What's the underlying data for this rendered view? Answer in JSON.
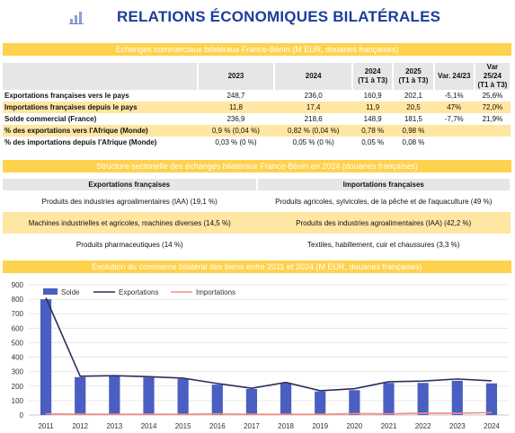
{
  "header": {
    "title": "RELATIONS ÉCONOMIQUES BILATÉRALES"
  },
  "section1": {
    "title": "Echanges commerciaux bilatéraux France-Bénin (M EUR, douanes françaises)",
    "columns": [
      "",
      "2023",
      "2024",
      "2024\n(T1 à T3)",
      "2025\n(T1 à T3)",
      "Var. 24/23",
      "Var 25/24\n(T1 à T3)"
    ],
    "rows": [
      {
        "label": "Exportations françaises vers le pays",
        "values": [
          "248,7",
          "236,0",
          "160,9",
          "202,1",
          "-5,1%",
          "25,6%"
        ]
      },
      {
        "label": "Importations françaises depuis le pays",
        "values": [
          "11,8",
          "17,4",
          "11,9",
          "20,5",
          "47%",
          "72,0%"
        ]
      },
      {
        "label": "Solde commercial (France)",
        "values": [
          "236,9",
          "218,6",
          "148,9",
          "181,5",
          "-7,7%",
          "21,9%"
        ]
      },
      {
        "label": "% des exportations vers l'Afrique (Monde)",
        "values": [
          "0,9 % (0,04 %)",
          "0,82 % (0,04 %)",
          "0,78 %",
          "0,98 %",
          "",
          ""
        ]
      },
      {
        "label": "% des importations depuis l'Afrique (Monde)",
        "values": [
          "0,03 % (0 %)",
          "0,05 % (0 %)",
          "0,05 %",
          "0,08 %",
          "",
          ""
        ]
      }
    ]
  },
  "section2": {
    "title": "Structure sectorielle des échanges bilatéraux France-Bénin en 2024 (douanes françaises)",
    "col_left": "Exportations françaises",
    "col_right": "Importations françaises",
    "rows": [
      {
        "left": "Produits des industries agroalimentaires (IAA) (19,1 %)",
        "right": "Produits agricoles, sylvicoles, de la pêche et de l'aquaculture (49 %)"
      },
      {
        "left": "Machines industrielles et agricoles, machines diverses (14,5 %)",
        "right": "Produits des industries agroalimentaires (IAA) (42,2 %)"
      },
      {
        "left": "Produits pharmaceutiques (14 %)",
        "right": "Textiles, habillement, cuir et chaussures (3,3 %)"
      }
    ]
  },
  "section3": {
    "title": "Evolution du commerce bilatéral des biens entre 2011 et 2024 (M EUR, douanes françaises)"
  },
  "colors": {
    "accent_band": "#ffd24d",
    "title_blue": "#1f3d99",
    "bar": "#4a5fc1",
    "exports_line": "#2d2f5a",
    "imports_line": "#f28b82",
    "row_alt": "#ffe6a3"
  },
  "chart_data": {
    "type": "bar",
    "categories": [
      "2011",
      "2012",
      "2013",
      "2014",
      "2015",
      "2016",
      "2017",
      "2018",
      "2019",
      "2020",
      "2021",
      "2022",
      "2023",
      "2024"
    ],
    "series": [
      {
        "name": "Solde",
        "type": "bar",
        "values": [
          800,
          262,
          268,
          260,
          250,
          210,
          180,
          220,
          163,
          172,
          222,
          222,
          237,
          219
        ]
      },
      {
        "name": "Exportations",
        "type": "line",
        "values": [
          810,
          268,
          272,
          265,
          255,
          218,
          185,
          225,
          168,
          182,
          230,
          235,
          249,
          236
        ]
      },
      {
        "name": "Importations",
        "type": "line",
        "values": [
          8,
          6,
          5,
          6,
          5,
          8,
          5,
          5,
          5,
          10,
          8,
          13,
          12,
          17
        ]
      }
    ],
    "ylim": [
      0,
      900
    ],
    "yticks": [
      0,
      100,
      200,
      300,
      400,
      500,
      600,
      700,
      800,
      900
    ],
    "grid": true,
    "legend": "top-left"
  }
}
